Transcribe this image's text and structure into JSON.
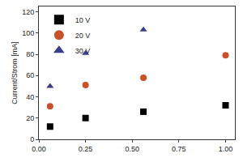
{
  "chart_data": {
    "type": "scatter",
    "y_label": "Current/Strom [mA]",
    "series": [
      {
        "name": "10 V",
        "color": "#000000",
        "marker": "square",
        "x": [
          0.06,
          0.25,
          0.56,
          1.0
        ],
        "values": [
          12,
          20,
          26,
          32
        ]
      },
      {
        "name": "20 V",
        "color": "#c8502a",
        "marker": "circle",
        "x": [
          0.06,
          0.25,
          0.56,
          1.0
        ],
        "values": [
          31,
          51,
          58,
          79
        ]
      },
      {
        "name": "30 V",
        "color": "#3a3c8c",
        "marker": "triangle-up",
        "x": [
          0.06,
          0.25,
          0.56
        ],
        "values": [
          50,
          81,
          103
        ]
      }
    ],
    "xlim": [
      0,
      1.05
    ],
    "xticks": [
      {
        "value": 0,
        "label": "0.00"
      },
      {
        "value": 0.25,
        "label": "0.25"
      },
      {
        "value": 0.5,
        "label": "0.50"
      },
      {
        "value": 0.75,
        "label": "0.75"
      },
      {
        "value": 1,
        "label": "1.00"
      }
    ],
    "ylim": [
      0,
      125
    ],
    "yticks": [
      0,
      20,
      40,
      60,
      80,
      100,
      120
    ],
    "legend": "top-left",
    "grid": false
  }
}
